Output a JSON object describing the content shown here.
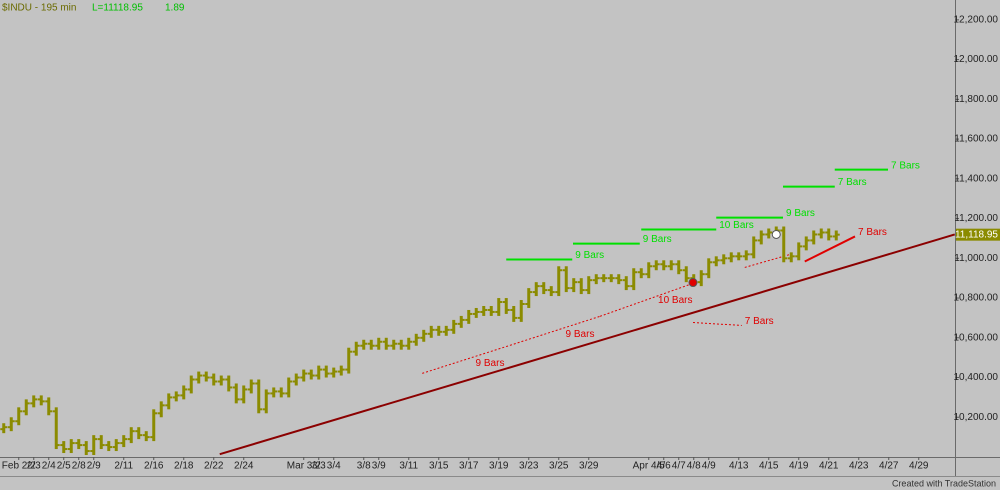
{
  "chart_data": {
    "type": "ohlc",
    "title": "$INDU - 195 min",
    "last_label": "L=11118.95",
    "change_label": "1.89",
    "footer": "Created with TradeStation",
    "color": "#8b8b00",
    "background": "#c3c3c3",
    "categories": [
      null,
      null,
      "Feb 2/2",
      null,
      "2/3",
      null,
      "2/4",
      null,
      "2/5",
      null,
      "2/8",
      null,
      "2/9",
      null,
      null,
      null,
      "2/11",
      null,
      null,
      null,
      "2/16",
      null,
      null,
      null,
      "2/18",
      null,
      null,
      null,
      "2/22",
      null,
      null,
      null,
      "2/24",
      null,
      null,
      null,
      null,
      null,
      null,
      null,
      "Mar 3/2",
      null,
      "3/3",
      null,
      "3/4",
      null,
      null,
      null,
      "3/8",
      null,
      "3/9",
      null,
      null,
      null,
      "3/11",
      null,
      null,
      null,
      "3/15",
      null,
      null,
      null,
      "3/17",
      null,
      null,
      null,
      "3/19",
      null,
      null,
      null,
      "3/23",
      null,
      null,
      null,
      "3/25",
      null,
      null,
      null,
      "3/29",
      null,
      null,
      null,
      null,
      null,
      null,
      null,
      "Apr 4/5",
      null,
      "4/6",
      null,
      "4/7",
      null,
      "4/8",
      null,
      "4/9",
      null,
      null,
      null,
      "4/13",
      null,
      null,
      null,
      "4/15",
      null,
      null,
      null,
      "4/19",
      null,
      null,
      null,
      "4/21",
      null,
      null,
      null,
      "4/23",
      null,
      null,
      null,
      "4/27",
      null,
      null,
      null,
      "4/29",
      null,
      null,
      null
    ],
    "open": [
      10140,
      10150,
      10180,
      10230,
      10270,
      10290,
      10280,
      10230,
      10060,
      10040,
      10070,
      10060,
      10030,
      10090,
      10060,
      10050,
      10070,
      10090,
      10130,
      10110,
      10100,
      10220,
      10260,
      10300,
      10310,
      10340,
      10390,
      10410,
      10400,
      10380,
      10390,
      10350,
      10290,
      10340,
      10370,
      10240,
      10320,
      10330,
      10320,
      10380,
      10400,
      10420,
      10410,
      10440,
      10420,
      10430,
      10440,
      10530,
      10560,
      10570,
      10560,
      10580,
      10560,
      10570,
      10560,
      10580,
      10600,
      10620,
      10640,
      10630,
      10640,
      10670,
      10690,
      10720,
      10730,
      10740,
      10730,
      10780,
      10740,
      10700,
      10770,
      10830,
      10860,
      10840,
      10830,
      10940,
      10850,
      10880,
      10840,
      10890,
      10900,
      10900,
      10900,
      10890,
      10860,
      10930,
      10920,
      10960,
      10970,
      10960,
      10970,
      10940,
      10900,
      10880,
      10920,
      10980,
      10990,
      11000,
      11010,
      11010,
      11020,
      11090,
      11120,
      11130,
      11140,
      11000,
      11010,
      11060,
      11090,
      11120,
      11130,
      11110,
      null,
      null,
      null,
      null,
      null,
      null,
      null,
      null,
      null,
      null,
      null,
      null,
      null,
      null
    ],
    "high": [
      10170,
      10200,
      10250,
      10290,
      10310,
      10310,
      10300,
      10250,
      10080,
      10090,
      10090,
      10080,
      10110,
      10110,
      10080,
      10090,
      10110,
      10150,
      10150,
      10130,
      10240,
      10280,
      10320,
      10330,
      10360,
      10410,
      10430,
      10430,
      10420,
      10410,
      10410,
      10370,
      10360,
      10390,
      10390,
      10340,
      10350,
      10350,
      10400,
      10420,
      10440,
      10440,
      10460,
      10460,
      10450,
      10460,
      10550,
      10580,
      10590,
      10590,
      10600,
      10600,
      10590,
      10590,
      10600,
      10620,
      10640,
      10660,
      10660,
      10660,
      10690,
      10710,
      10740,
      10750,
      10760,
      10760,
      10800,
      10800,
      10760,
      10790,
      10850,
      10880,
      10880,
      10860,
      10960,
      10960,
      10900,
      10900,
      10910,
      10920,
      10920,
      10920,
      10920,
      10910,
      10950,
      10950,
      10980,
      10990,
      10990,
      10990,
      10990,
      10960,
      10920,
      10940,
      11000,
      11010,
      11020,
      11030,
      11030,
      11040,
      11110,
      11140,
      11150,
      11160,
      11160,
      11030,
      11080,
      11110,
      11140,
      11150,
      11150,
      11140,
      null,
      null,
      null,
      null,
      null,
      null,
      null,
      null,
      null,
      null,
      null,
      null,
      null,
      null
    ],
    "low": [
      10120,
      10130,
      10160,
      10210,
      10250,
      10260,
      10210,
      10040,
      10020,
      10020,
      10040,
      10010,
      10010,
      10040,
      10030,
      10030,
      10050,
      10070,
      10090,
      10080,
      10080,
      10200,
      10240,
      10280,
      10290,
      10320,
      10370,
      10380,
      10360,
      10360,
      10330,
      10270,
      10270,
      10320,
      10220,
      10220,
      10300,
      10300,
      10300,
      10360,
      10380,
      10390,
      10390,
      10400,
      10400,
      10410,
      10420,
      10510,
      10540,
      10540,
      10540,
      10540,
      10540,
      10540,
      10540,
      10560,
      10580,
      10600,
      10610,
      10610,
      10620,
      10650,
      10670,
      10700,
      10710,
      10710,
      10710,
      10720,
      10680,
      10680,
      10750,
      10810,
      10820,
      10810,
      10810,
      10830,
      10830,
      10820,
      10820,
      10870,
      10880,
      10880,
      10870,
      10840,
      10840,
      10900,
      10900,
      10940,
      10940,
      10940,
      10920,
      10880,
      10860,
      10860,
      10900,
      10960,
      10970,
      10980,
      10990,
      10990,
      11000,
      11070,
      11100,
      11110,
      10980,
      10980,
      10990,
      11040,
      11070,
      11100,
      11090,
      11090,
      null,
      null,
      null,
      null,
      null,
      null,
      null,
      null,
      null,
      null,
      null,
      null,
      null,
      null
    ],
    "close": [
      10150,
      10180,
      10230,
      10270,
      10290,
      10280,
      10230,
      10060,
      10040,
      10070,
      10060,
      10030,
      10090,
      10060,
      10050,
      10070,
      10090,
      10130,
      10110,
      10100,
      10220,
      10260,
      10300,
      10310,
      10340,
      10390,
      10410,
      10400,
      10380,
      10390,
      10350,
      10290,
      10340,
      10370,
      10240,
      10320,
      10330,
      10320,
      10380,
      10400,
      10420,
      10410,
      10440,
      10420,
      10430,
      10440,
      10530,
      10560,
      10570,
      10560,
      10580,
      10560,
      10570,
      10560,
      10580,
      10600,
      10620,
      10640,
      10630,
      10640,
      10670,
      10690,
      10720,
      10730,
      10740,
      10730,
      10780,
      10740,
      10700,
      10770,
      10830,
      10860,
      10840,
      10830,
      10940,
      10850,
      10880,
      10840,
      10890,
      10900,
      10900,
      10900,
      10890,
      10860,
      10930,
      10920,
      10960,
      10970,
      10960,
      10970,
      10940,
      10900,
      10880,
      10920,
      10980,
      10990,
      11000,
      11010,
      11010,
      11020,
      11090,
      11120,
      11130,
      11140,
      11000,
      11010,
      11060,
      11090,
      11120,
      11130,
      11110,
      11118.95,
      null,
      null,
      null,
      null,
      null,
      null,
      null,
      null,
      null,
      null,
      null,
      null,
      null,
      null
    ],
    "ylim": [
      10000,
      12300
    ],
    "yticks": [
      {
        "value": 10200,
        "label": "10,200.00"
      },
      {
        "value": 10400,
        "label": "10,400.00"
      },
      {
        "value": 10600,
        "label": "10,600.00"
      },
      {
        "value": 10800,
        "label": "10,800.00"
      },
      {
        "value": 11000,
        "label": "11,000.00"
      },
      {
        "value": 11200,
        "label": "11,200.00"
      },
      {
        "value": 11400,
        "label": "11,400.00"
      },
      {
        "value": 11600,
        "label": "11,600.00"
      },
      {
        "value": 11800,
        "label": "11,800.00"
      },
      {
        "value": 12000,
        "label": "12,000.00"
      },
      {
        "value": 12200,
        "label": "12,200.00"
      }
    ],
    "last_price": {
      "value": 11118.95,
      "label": "11,118.95"
    },
    "annotations": [
      {
        "label": "9 Bars",
        "color": "#00e000",
        "style": "solid",
        "x": [
          67.5,
          76.3
        ],
        "y": [
          10994,
          10994
        ]
      },
      {
        "label": "9 Bars",
        "color": "#00e000",
        "style": "solid",
        "x": [
          76.4,
          85.3
        ],
        "y": [
          11074,
          11074
        ]
      },
      {
        "label": "10 Bars",
        "color": "#00e000",
        "style": "solid",
        "x": [
          85.5,
          95.5
        ],
        "y": [
          11145,
          11145
        ]
      },
      {
        "label": "9 Bars",
        "color": "#00e000",
        "style": "solid",
        "x": [
          95.5,
          104.4
        ],
        "y": [
          11205,
          11205
        ]
      },
      {
        "label": "7 Bars",
        "color": "#00e000",
        "style": "solid",
        "x": [
          104.4,
          111.3
        ],
        "y": [
          11361,
          11361
        ]
      },
      {
        "label": "7 Bars",
        "color": "#00e000",
        "style": "solid",
        "x": [
          111.3,
          118.4
        ],
        "y": [
          11446,
          11446
        ]
      },
      {
        "label": "9 Bars",
        "color": "#e00000",
        "style": "dotted",
        "x": [
          56.3,
          68
        ],
        "y": [
          10421,
          10562
        ]
      },
      {
        "label": "9 Bars",
        "color": "#e00000",
        "style": "dotted",
        "x": [
          68,
          80
        ],
        "y": [
          10562,
          10708
        ]
      },
      {
        "label": "10 Bars",
        "color": "#e00000",
        "style": "dotted",
        "x": [
          80,
          92.7
        ],
        "y": [
          10708,
          10878
        ]
      },
      {
        "label": "7 Bars",
        "color": "#e00000",
        "style": "dotted",
        "x": [
          92.4,
          98.9
        ],
        "y": [
          10677,
          10662
        ]
      },
      {
        "color": "#e00000",
        "style": "dotted",
        "x": [
          99.3,
          105.3
        ],
        "y": [
          10954,
          11019
        ]
      },
      {
        "label": "7 Bars",
        "color": "#e00000",
        "style": "solid",
        "x": [
          107.3,
          114
        ],
        "y": [
          10984,
          11110
        ]
      },
      {
        "color": "#8b0000",
        "style": "solid",
        "x": [
          29.3,
          127.3
        ],
        "y": [
          10014,
          11120
        ]
      }
    ],
    "markers": [
      {
        "x": 92.4,
        "y": 10878,
        "color": "#e00000"
      },
      {
        "x": 103.5,
        "y": 11120,
        "color": "#ffffff"
      }
    ]
  }
}
